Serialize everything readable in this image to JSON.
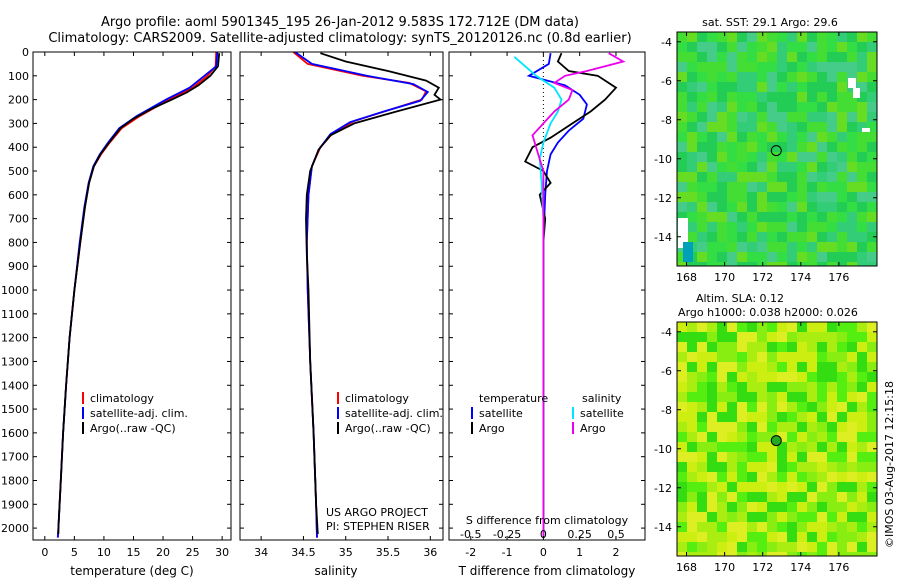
{
  "header": {
    "title_line1": "Argo profile: aoml 5901345_195 26-Jan-2012 9.583S 172.712E (DM data)",
    "title_line2": "Climatology: CARS2009. Satellite-adjusted climatology: synTS_20120126.nc (0.8d earlier)"
  },
  "credit": "©IMOS 03-Aug-2017 12:15:18",
  "colors": {
    "climatology": "#ff0000",
    "satellite": "#0000ff",
    "argo": "#000000",
    "sat_salinity": "#00e5ff",
    "argo_salinity": "#ee00ee"
  },
  "depth_axis": {
    "ylim": [
      0,
      2050
    ],
    "ticks": [
      0,
      100,
      200,
      300,
      400,
      500,
      600,
      700,
      800,
      900,
      1000,
      1100,
      1200,
      1300,
      1400,
      1500,
      1600,
      1700,
      1800,
      1900,
      2000
    ],
    "tick_labels": [
      "0",
      "100",
      "200",
      "300",
      "400",
      "500",
      "600",
      "700",
      "800",
      "900",
      "1000",
      "1100",
      "1200",
      "1300",
      "1400",
      "1500",
      "1600",
      "1700",
      "1800",
      "1900",
      "2000"
    ]
  },
  "chart_data": [
    {
      "type": "line",
      "id": "temp",
      "xlabel": "temperature (deg C)",
      "xlim": [
        -2,
        31.5
      ],
      "xticks": [
        0,
        5,
        10,
        15,
        20,
        25,
        30
      ],
      "xtick_labels": [
        "0",
        "5",
        "10",
        "15",
        "20",
        "25",
        "30"
      ],
      "legend": {
        "placement": "lower-left",
        "entries": [
          "climatology",
          "satellite-adj. clim.",
          "Argo(..raw -QC)"
        ]
      },
      "series": [
        {
          "name": "climatology",
          "color": "#ff0000",
          "points": [
            [
              29.0,
              0
            ],
            [
              28.9,
              60
            ],
            [
              27.5,
              100
            ],
            [
              25,
              150
            ],
            [
              21,
              200
            ],
            [
              16,
              270
            ],
            [
              13,
              320
            ],
            [
              11,
              380
            ],
            [
              9.5,
              430
            ],
            [
              8.3,
              480
            ],
            [
              7.5,
              550
            ],
            [
              6.8,
              650
            ],
            [
              6.0,
              800
            ],
            [
              5.0,
              1000
            ],
            [
              4.2,
              1200
            ],
            [
              3.6,
              1400
            ],
            [
              3.1,
              1600
            ],
            [
              2.7,
              1800
            ],
            [
              2.3,
              2000
            ],
            [
              2.2,
              2040
            ]
          ]
        },
        {
          "name": "satellite-adj. clim.",
          "color": "#0000ff",
          "points": [
            [
              29.2,
              0
            ],
            [
              29.0,
              60
            ],
            [
              27.0,
              100
            ],
            [
              24.5,
              150
            ],
            [
              20.5,
              200
            ],
            [
              15.5,
              270
            ],
            [
              12.6,
              320
            ],
            [
              10.7,
              380
            ],
            [
              9.3,
              430
            ],
            [
              8.2,
              480
            ],
            [
              7.4,
              550
            ],
            [
              6.7,
              650
            ],
            [
              5.9,
              800
            ],
            [
              5.0,
              1000
            ],
            [
              4.2,
              1200
            ],
            [
              3.6,
              1400
            ],
            [
              3.1,
              1600
            ],
            [
              2.7,
              1800
            ],
            [
              2.3,
              2000
            ],
            [
              2.2,
              2040
            ]
          ]
        },
        {
          "name": "Argo(..raw -QC)",
          "color": "#000000",
          "points": [
            [
              29.5,
              5
            ],
            [
              29.3,
              60
            ],
            [
              28.0,
              100
            ],
            [
              26,
              140
            ],
            [
              24,
              170
            ],
            [
              21.5,
              200
            ],
            [
              18,
              240
            ],
            [
              15,
              280
            ],
            [
              12.8,
              320
            ],
            [
              10.9,
              380
            ],
            [
              9.4,
              430
            ],
            [
              8.3,
              480
            ],
            [
              7.5,
              550
            ],
            [
              6.8,
              650
            ],
            [
              6.0,
              800
            ],
            [
              5.0,
              1000
            ],
            [
              4.2,
              1200
            ],
            [
              3.6,
              1400
            ],
            [
              3.1,
              1600
            ],
            [
              2.7,
              1800
            ],
            [
              2.3,
              2000
            ],
            [
              2.3,
              2025
            ]
          ]
        }
      ]
    },
    {
      "type": "line",
      "id": "sal",
      "xlabel": "salinity",
      "xlim": [
        33.75,
        36.15
      ],
      "xticks": [
        34,
        34.5,
        35,
        35.5,
        36
      ],
      "xtick_labels": [
        "34",
        "34.5",
        "35",
        "35.5",
        "36"
      ],
      "legend": {
        "placement": "lower-right",
        "entries": [
          "climatology",
          "satellite-adj. clim.",
          "Argo(..raw -QC)"
        ]
      },
      "annotation": [
        "US ARGO PROJECT",
        "PI: STEPHEN RISER"
      ],
      "series": [
        {
          "name": "climatology",
          "color": "#ff0000",
          "points": [
            [
              34.38,
              0
            ],
            [
              34.55,
              50
            ],
            [
              35.2,
              100
            ],
            [
              35.75,
              130
            ],
            [
              35.95,
              165
            ],
            [
              35.9,
              200
            ],
            [
              35.5,
              245
            ],
            [
              35.1,
              290
            ],
            [
              34.85,
              340
            ],
            [
              34.7,
              400
            ],
            [
              34.6,
              480
            ],
            [
              34.56,
              600
            ],
            [
              34.54,
              800
            ],
            [
              34.55,
              1000
            ],
            [
              34.58,
              1300
            ],
            [
              34.62,
              1600
            ],
            [
              34.65,
              1900
            ],
            [
              34.66,
              2040
            ]
          ]
        },
        {
          "name": "satellite-adj. clim.",
          "color": "#0000ff",
          "points": [
            [
              34.4,
              0
            ],
            [
              34.6,
              50
            ],
            [
              35.25,
              100
            ],
            [
              35.8,
              135
            ],
            [
              35.97,
              168
            ],
            [
              35.88,
              205
            ],
            [
              35.45,
              250
            ],
            [
              35.05,
              295
            ],
            [
              34.82,
              345
            ],
            [
              34.68,
              410
            ],
            [
              34.6,
              480
            ],
            [
              34.56,
              600
            ],
            [
              34.54,
              800
            ],
            [
              34.55,
              1000
            ],
            [
              34.58,
              1300
            ],
            [
              34.62,
              1600
            ],
            [
              34.65,
              1900
            ],
            [
              34.66,
              2040
            ]
          ]
        },
        {
          "name": "Argo(..raw -QC)",
          "color": "#000000",
          "points": [
            [
              34.7,
              5
            ],
            [
              35.0,
              40
            ],
            [
              35.5,
              80
            ],
            [
              35.95,
              120
            ],
            [
              36.1,
              150
            ],
            [
              36.05,
              180
            ],
            [
              36.12,
              200
            ],
            [
              35.6,
              250
            ],
            [
              35.1,
              300
            ],
            [
              34.82,
              350
            ],
            [
              34.68,
              410
            ],
            [
              34.58,
              500
            ],
            [
              34.54,
              600
            ],
            [
              34.53,
              700
            ],
            [
              34.54,
              850
            ],
            [
              34.56,
              1000
            ],
            [
              34.58,
              1300
            ],
            [
              34.62,
              1600
            ],
            [
              34.65,
              1900
            ],
            [
              34.67,
              2025
            ]
          ]
        }
      ]
    },
    {
      "type": "line",
      "id": "diff",
      "xlabel": "T difference from climatology",
      "xlim": [
        -2.6,
        2.8
      ],
      "xticks": [
        -2,
        -1,
        0,
        1,
        2
      ],
      "xtick_labels": [
        "-2",
        "-1",
        "0",
        "1",
        "2"
      ],
      "top_scale": {
        "label": "S difference from climatology",
        "ticks": [
          -0.5,
          -0.25,
          0,
          0.25,
          0.5
        ],
        "tick_labels": [
          "-0.5",
          "-0.25",
          "0",
          "0.25",
          "0.5"
        ],
        "scale_factor": 4
      },
      "legend": {
        "placement": "lower-center",
        "headers": [
          "temperature",
          "salinity"
        ],
        "entries": [
          "satellite",
          "Argo",
          "satellite",
          "Argo"
        ]
      },
      "series": [
        {
          "name": "satellite",
          "group": "temperature",
          "color": "#0000ff",
          "points": [
            [
              0.2,
              5
            ],
            [
              0.15,
              50
            ],
            [
              -0.4,
              100
            ],
            [
              0.6,
              140
            ],
            [
              1.0,
              180
            ],
            [
              1.2,
              220
            ],
            [
              1.1,
              280
            ],
            [
              0.7,
              330
            ],
            [
              0.4,
              380
            ],
            [
              0.2,
              430
            ],
            [
              0.1,
              500
            ],
            [
              0.05,
              600
            ],
            [
              0.0,
              800
            ],
            [
              0.0,
              1000
            ],
            [
              0.0,
              1500
            ],
            [
              0.0,
              2040
            ]
          ]
        },
        {
          "name": "Argo",
          "group": "temperature",
          "color": "#000000",
          "points": [
            [
              0.5,
              5
            ],
            [
              0.4,
              40
            ],
            [
              0.7,
              80
            ],
            [
              1.5,
              100
            ],
            [
              2.0,
              150
            ],
            [
              1.7,
              200
            ],
            [
              1.3,
              250
            ],
            [
              0.8,
              300
            ],
            [
              0.2,
              360
            ],
            [
              -0.3,
              400
            ],
            [
              -0.5,
              460
            ],
            [
              0.0,
              500
            ],
            [
              0.2,
              550
            ],
            [
              -0.1,
              600
            ],
            [
              0.05,
              700
            ],
            [
              0.0,
              800
            ],
            [
              0.0,
              1000
            ],
            [
              0.0,
              1500
            ],
            [
              0.0,
              2040
            ]
          ]
        },
        {
          "name": "satellite",
          "group": "salinity",
          "color": "#00e5ff",
          "points": [
            [
              -0.8,
              20
            ],
            [
              -0.5,
              60
            ],
            [
              -0.2,
              100
            ],
            [
              0.3,
              150
            ],
            [
              0.5,
              200
            ],
            [
              0.4,
              250
            ],
            [
              0.2,
              300
            ],
            [
              0.0,
              380
            ],
            [
              -0.1,
              450
            ],
            [
              -0.05,
              550
            ],
            [
              0.0,
              700
            ],
            [
              0.0,
              1000
            ],
            [
              0.0,
              1500
            ],
            [
              0.0,
              2040
            ]
          ]
        },
        {
          "name": "Argo",
          "group": "salinity",
          "color": "#ee00ee",
          "points": [
            [
              1.8,
              5
            ],
            [
              2.2,
              40
            ],
            [
              1.2,
              80
            ],
            [
              0.6,
              100
            ],
            [
              0.3,
              130
            ],
            [
              0.8,
              160
            ],
            [
              0.7,
              200
            ],
            [
              0.3,
              250
            ],
            [
              0.0,
              300
            ],
            [
              -0.3,
              350
            ],
            [
              -0.2,
              400
            ],
            [
              -0.1,
              450
            ],
            [
              0.0,
              500
            ],
            [
              0.0,
              700
            ],
            [
              0.0,
              1000
            ],
            [
              0.0,
              1500
            ],
            [
              0.0,
              2040
            ]
          ]
        }
      ]
    }
  ],
  "maps": [
    {
      "id": "sst",
      "title_lines": [
        "sat. SST: 29.1  Argo: 29.6"
      ],
      "xlim": [
        167.5,
        178
      ],
      "ylim": [
        -15.5,
        -3.5
      ],
      "xticks": [
        168,
        170,
        172,
        174,
        176
      ],
      "xtick_labels": [
        "168",
        "170",
        "172",
        "174",
        "176"
      ],
      "yticks": [
        -4,
        -6,
        -8,
        -10,
        -12,
        -14
      ],
      "ytick_labels": [
        "-4",
        "-6",
        "-8",
        "-10",
        "-12",
        "-14"
      ],
      "marker": {
        "lon": 172.712,
        "lat": -9.583,
        "filled": false
      },
      "palette": [
        "#22cc55",
        "#33dd44",
        "#44dd33",
        "#66dd22",
        "#33cc77",
        "#44cc88"
      ]
    },
    {
      "id": "sla",
      "title_lines": [
        "Altim. SLA: 0.12",
        "Argo h1000: 0.038  h2000: 0.026"
      ],
      "xlim": [
        167.5,
        178
      ],
      "ylim": [
        -15.5,
        -3.5
      ],
      "xticks": [
        168,
        170,
        172,
        174,
        176
      ],
      "xtick_labels": [
        "168",
        "170",
        "172",
        "174",
        "176"
      ],
      "yticks": [
        -4,
        -6,
        -8,
        -10,
        -12,
        -14
      ],
      "ytick_labels": [
        "-4",
        "-6",
        "-8",
        "-10",
        "-12",
        "-14"
      ],
      "marker": {
        "lon": 172.712,
        "lat": -9.583,
        "filled": true
      },
      "palette": [
        "#33dd11",
        "#55ee11",
        "#88ee11",
        "#aaee11",
        "#ccee11",
        "#ddee22"
      ]
    }
  ]
}
